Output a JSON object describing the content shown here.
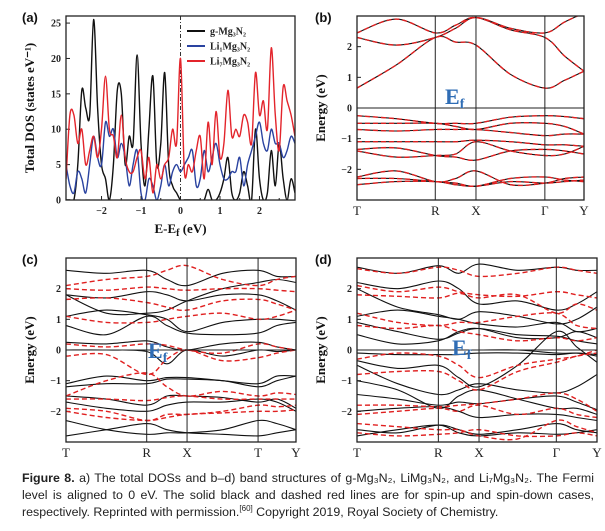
{
  "figure": {
    "colors": {
      "spin_up": "#111111",
      "spin_down": "#e02020",
      "mg3n2": "#111111",
      "li1": "#2a43a0",
      "li7": "#e3242b",
      "ef_label": "#2f6db5"
    },
    "ef_label": {
      "main": "E",
      "sub": "f"
    }
  },
  "chart_data": [
    {
      "panel": "(a)",
      "type": "line",
      "xlabel": {
        "main": "E-E",
        "sub": "f",
        "rest": " (eV)"
      },
      "ylabel": "Total DOS (states eV⁻¹)",
      "xlim": [
        -2.9,
        2.9
      ],
      "ylim": [
        0,
        26
      ],
      "xticks": [
        -2,
        -1,
        0,
        1,
        2
      ],
      "yticks": [
        0,
        5,
        10,
        15,
        20,
        25
      ],
      "fermi_line": 0,
      "legend_position": "top-right",
      "x": [
        -2.9,
        -2.8,
        -2.7,
        -2.6,
        -2.5,
        -2.4,
        -2.3,
        -2.2,
        -2.1,
        -2.0,
        -1.9,
        -1.8,
        -1.7,
        -1.6,
        -1.5,
        -1.4,
        -1.3,
        -1.2,
        -1.1,
        -1.0,
        -0.9,
        -0.8,
        -0.7,
        -0.6,
        -0.5,
        -0.4,
        -0.3,
        -0.2,
        -0.1,
        0,
        0.1,
        0.2,
        0.3,
        0.4,
        0.5,
        0.6,
        0.7,
        0.8,
        0.9,
        1.0,
        1.1,
        1.2,
        1.3,
        1.4,
        1.5,
        1.6,
        1.7,
        1.8,
        1.9,
        2.0,
        2.1,
        2.2,
        2.3,
        2.4,
        2.5,
        2.6,
        2.7,
        2.8,
        2.9
      ],
      "series": [
        {
          "name": "g-Mg₃N₂",
          "color_key": "mg3n2",
          "values": [
            0,
            0,
            0,
            5,
            15.5,
            13,
            12,
            25.5,
            13,
            5,
            3,
            0,
            5,
            15.5,
            15,
            5,
            9,
            8,
            20.5,
            8,
            2,
            10,
            17.5,
            5,
            8,
            18,
            5,
            2,
            1,
            0,
            0,
            0,
            0,
            0,
            0,
            0,
            1.5,
            0,
            0,
            1,
            3,
            6,
            1,
            0,
            1,
            4,
            2,
            0,
            10,
            3,
            0,
            1,
            7,
            2,
            8,
            3,
            0,
            3,
            1
          ]
        },
        {
          "name": "Li₁Mg₃N₂",
          "color_key": "li1",
          "values": [
            5,
            2,
            1,
            4,
            3,
            1,
            5,
            9,
            6,
            5,
            11,
            9,
            10,
            6,
            8,
            6,
            2,
            5,
            7,
            1,
            0,
            3,
            2,
            0,
            2,
            5,
            2,
            4,
            5,
            4,
            5,
            6,
            7,
            2,
            3,
            7,
            4,
            6,
            8,
            5,
            3,
            3,
            4,
            4,
            6,
            2,
            5,
            7,
            9,
            11,
            8,
            7,
            10,
            8,
            8,
            6,
            7,
            9,
            8
          ]
        },
        {
          "name": "Li₇Mg₃N₂",
          "color_key": "li7",
          "values": [
            3,
            12,
            12,
            8,
            10,
            5,
            7,
            9,
            6,
            10,
            17.5,
            10,
            9,
            6,
            12,
            6,
            4,
            4,
            6,
            7,
            3,
            6,
            1,
            5,
            3,
            5,
            6,
            10,
            8,
            20,
            4,
            5,
            4,
            7,
            9,
            3,
            11,
            5,
            12.5,
            6,
            8,
            15.5,
            9,
            10,
            9,
            12,
            11,
            8,
            18,
            12,
            14,
            10,
            21.5,
            12,
            7,
            16,
            14,
            12,
            9
          ]
        }
      ]
    },
    {
      "panel": "(b)",
      "type": "line",
      "ylabel": "Energy (eV)",
      "ylim": [
        -3,
        3
      ],
      "yticks": [
        -2,
        -1,
        0,
        1,
        2
      ],
      "k_path": [
        {
          "label": "T",
          "k": 0
        },
        {
          "label": "R",
          "k": 1
        },
        {
          "label": "X",
          "k": 1.52
        },
        {
          "label": "Γ",
          "k": 2.4
        },
        {
          "label": "Y",
          "k": 2.9
        }
      ],
      "spin_up": [
        [
          0.65,
          1.4,
          2.3,
          2.15,
          2.05,
          1.1,
          0.65,
          0.9,
          1.2
        ],
        [
          2.3,
          2.05,
          2.3,
          2.6,
          2.95,
          2.6,
          2.45,
          2.8,
          3.1
        ],
        [
          2.45,
          2.9,
          2.45,
          2.7,
          2.95,
          2.55,
          2.3,
          1.7,
          1.2
        ],
        [
          -0.25,
          -0.35,
          -0.5,
          -0.5,
          -0.5,
          -0.3,
          -0.25,
          -0.28,
          -0.35
        ],
        [
          -0.5,
          -0.5,
          -0.5,
          -0.6,
          -0.7,
          -0.5,
          -0.5,
          -0.6,
          -0.85
        ],
        [
          -0.7,
          -0.75,
          -0.7,
          -0.7,
          -0.7,
          -0.8,
          -0.9,
          -0.85,
          -0.85
        ],
        [
          -1.1,
          -1.1,
          -1.1,
          -1.1,
          -1.05,
          -1.1,
          -1.2,
          -1.2,
          -1.25
        ],
        [
          -1.35,
          -1.3,
          -1.55,
          -1.6,
          -1.7,
          -1.4,
          -1.35,
          -1.4,
          -1.5
        ],
        [
          -1.4,
          -1.6,
          -1.55,
          -1.5,
          -1.1,
          -1.4,
          -1.55,
          -1.5,
          -1.25
        ],
        [
          -2.25,
          -2.05,
          -2.4,
          -2.3,
          -2.05,
          -2.5,
          -2.45,
          -2.3,
          -2.25
        ],
        [
          -2.3,
          -2.3,
          -2.4,
          -2.45,
          -2.55,
          -2.3,
          -2.25,
          -2.35,
          -2.4
        ],
        [
          -2.5,
          -2.4,
          -2.4,
          -2.5,
          -2.55,
          -2.4,
          -2.45,
          -2.4,
          -2.35
        ]
      ],
      "spin_down_same_as_up": true
    },
    {
      "panel": "(c)",
      "type": "line",
      "ylabel": "Energy (eV)",
      "ylim": [
        -3,
        3
      ],
      "yticks": [
        -2,
        -1,
        0,
        1,
        2
      ],
      "k_path": [
        {
          "label": "T",
          "k": 0
        },
        {
          "label": "R",
          "k": 1
        },
        {
          "label": "X",
          "k": 1.5
        },
        {
          "label": "T",
          "k": 2.38
        },
        {
          "label": "Y",
          "k": 2.85
        }
      ],
      "spin_up": [
        [
          2.6,
          2.5,
          2.6,
          2.3,
          2.1,
          2.5,
          2.6,
          2.4,
          2.4
        ],
        [
          1.8,
          1.7,
          1.9,
          1.8,
          1.6,
          1.8,
          1.8,
          1.6,
          1.3
        ],
        [
          1.8,
          1.2,
          1.2,
          1.3,
          1.6,
          2.0,
          2.2,
          2.3,
          2.2
        ],
        [
          1.1,
          1.3,
          1.15,
          1.0,
          0.6,
          0.9,
          1.0,
          1.0,
          0.95
        ],
        [
          0.8,
          0.5,
          1.1,
          0.8,
          0.55,
          0.5,
          0.55,
          0.8,
          0.9
        ],
        [
          0.25,
          0.2,
          0.3,
          0.1,
          0,
          0.2,
          0.25,
          0.1,
          0
        ],
        [
          0,
          0,
          -0.05,
          -0.45,
          0,
          -0.2,
          0,
          -0.05,
          0
        ],
        [
          -1.1,
          -0.85,
          -1.0,
          -0.9,
          -0.9,
          -1.0,
          -1.1,
          -0.85,
          -0.85
        ],
        [
          -1.2,
          -1.1,
          -1.1,
          -0.95,
          -0.95,
          -1.0,
          -1.2,
          -1.0,
          -0.85
        ],
        [
          -1.5,
          -1.6,
          -1.8,
          -1.5,
          -1.5,
          -1.55,
          -1.7,
          -1.6,
          -1.9
        ],
        [
          -1.7,
          -1.9,
          -2.0,
          -1.8,
          -1.7,
          -1.7,
          -1.6,
          -1.7,
          -2.0
        ],
        [
          -2.3,
          -2.6,
          -2.75,
          -2.7,
          -2.7,
          -2.6,
          -2.3,
          -2.4,
          -2.6
        ],
        [
          -2.8,
          -2.6,
          -2.4,
          -2.6,
          -2.7,
          -2.75,
          -2.8,
          -2.7,
          -2.6
        ]
      ],
      "spin_down": [
        [
          2.1,
          2.3,
          2.4,
          2.6,
          2.75,
          2.3,
          2.1,
          2.3,
          2.4
        ],
        [
          2.0,
          1.95,
          2.05,
          2.0,
          1.95,
          2.0,
          2.0,
          1.95,
          1.9
        ],
        [
          1.65,
          1.7,
          1.55,
          1.4,
          1.3,
          1.6,
          1.65,
          1.5,
          1.3
        ],
        [
          1.1,
          0.9,
          0.9,
          1.0,
          1.1,
          1.2,
          1.0,
          1.1,
          1.3
        ],
        [
          0.2,
          0.1,
          0.2,
          0.15,
          0,
          -0.1,
          0.2,
          0.1,
          0
        ],
        [
          -0.2,
          -0.15,
          -0.8,
          -0.3,
          0,
          -0.35,
          -0.25,
          -0.1,
          0
        ],
        [
          -1.5,
          -1.0,
          -0.75,
          -1.2,
          -1.5,
          -1.35,
          -1.5,
          -1.4,
          -1.45
        ],
        [
          -1.6,
          -1.6,
          -1.65,
          -1.55,
          -1.5,
          -1.6,
          -1.6,
          -1.6,
          -1.6
        ],
        [
          -1.9,
          -2.0,
          -2.3,
          -2.1,
          -2.1,
          -2.0,
          -1.8,
          -1.85,
          -1.8
        ],
        [
          -2.0,
          -2.2,
          -2.3,
          -2.2,
          -2.1,
          -2.05,
          -2.0,
          -2.0,
          -1.95
        ]
      ]
    },
    {
      "panel": "(d)",
      "type": "line",
      "ylabel": "Energy (eV)",
      "ylim": [
        -3,
        3
      ],
      "yticks": [
        -2,
        -1,
        0,
        1,
        2
      ],
      "k_path": [
        {
          "label": "T",
          "k": 0
        },
        {
          "label": "R",
          "k": 1
        },
        {
          "label": "X",
          "k": 1.5
        },
        {
          "label": "Γ",
          "k": 2.45
        },
        {
          "label": "Y",
          "k": 2.95
        }
      ],
      "spin_up": [
        [
          2.7,
          2.5,
          2.75,
          2.5,
          2.8,
          2.6,
          2.7,
          2.6,
          2.6
        ],
        [
          2.2,
          2.0,
          2.25,
          2.0,
          1.5,
          1.6,
          1.3,
          1.5,
          1.9
        ],
        [
          2.0,
          1.4,
          1.15,
          1.0,
          1.25,
          1.1,
          0.85,
          1.0,
          1.4
        ],
        [
          1.1,
          1.3,
          1.1,
          1.0,
          0.85,
          0.75,
          0.9,
          0.6,
          0.7
        ],
        [
          0.9,
          0.6,
          0.35,
          0.55,
          0.7,
          0.5,
          0.45,
          0.3,
          0.2
        ],
        [
          0.5,
          0.2,
          0.3,
          0.6,
          0.7,
          0.4,
          0.4,
          0.6,
          0.4
        ],
        [
          0,
          0,
          0,
          0,
          0,
          0,
          -0.1,
          -0.1,
          -0.15
        ],
        [
          -0.1,
          -0.15,
          -0.15,
          -0.15,
          -0.1,
          -0.1,
          -0.15,
          -0.1,
          -0.2
        ],
        [
          -0.35,
          -0.6,
          -0.5,
          -0.9,
          -1.2,
          -0.5,
          0.6,
          0.1,
          -0.4
        ],
        [
          -0.5,
          -1.1,
          -1.45,
          -1.3,
          -1.1,
          -1.3,
          -1.4,
          -1.2,
          -0.8
        ],
        [
          -1.0,
          -1.3,
          -1.9,
          -1.5,
          -1.3,
          -1.6,
          -1.9,
          -1.9,
          -2.1
        ],
        [
          -1.45,
          -1.6,
          -1.8,
          -1.7,
          -1.75,
          -1.6,
          -1.5,
          -1.7,
          -1.95
        ],
        [
          -2.0,
          -1.9,
          -1.85,
          -2.0,
          -2.2,
          -2.1,
          -2.1,
          -2.2,
          -2.3
        ],
        [
          -2.6,
          -2.7,
          -2.45,
          -2.6,
          -2.75,
          -2.6,
          -2.4,
          -2.6,
          -2.7
        ],
        [
          -2.8,
          -2.6,
          -2.45,
          -2.7,
          -2.8,
          -2.7,
          -2.75,
          -2.7,
          -2.6
        ]
      ],
      "spin_down": [
        [
          2.65,
          2.5,
          2.7,
          2.6,
          2.4,
          2.5,
          2.7,
          2.6,
          2.5
        ],
        [
          2.1,
          1.9,
          2.05,
          1.9,
          1.8,
          1.75,
          1.9,
          1.8,
          1.7
        ],
        [
          1.8,
          1.75,
          1.7,
          1.85,
          1.7,
          1.8,
          1.2,
          1.5,
          1.3
        ],
        [
          1.2,
          0.9,
          0.8,
          0.9,
          0.9,
          1.1,
          1.2,
          0.8,
          0.7
        ],
        [
          0.8,
          0.7,
          0.8,
          0.6,
          0.5,
          0.3,
          0.4,
          0.3,
          0.4
        ],
        [
          -0.3,
          -0.1,
          -0.2,
          -0.5,
          -0.9,
          -0.5,
          -0.3,
          -0.2,
          0
        ],
        [
          -0.8,
          -0.7,
          -0.7,
          -1.0,
          -1.3,
          -0.7,
          -0.4,
          -0.2,
          -0.1
        ],
        [
          -1.8,
          -1.8,
          -1.85,
          -1.8,
          -1.75,
          -1.6,
          -1.4,
          -1.6,
          -2.0
        ],
        [
          -2.1,
          -2.0,
          -1.9,
          -2.0,
          -1.8,
          -2.1,
          -1.9,
          -2.1,
          -2.2
        ],
        [
          -2.4,
          -2.5,
          -2.6,
          -2.6,
          -2.8,
          -2.9,
          -2.3,
          -2.5,
          -2.7
        ],
        [
          -2.7,
          -2.8,
          -2.75,
          -2.7,
          -2.6,
          -2.8,
          -2.8,
          -2.7,
          -2.8
        ]
      ]
    }
  ],
  "caption": {
    "label": "Figure 8.",
    "line1": " a) The total DOSs and b–d) band structures of g-Mg₃N₂, LiMg₃N₂, and Li₇Mg₃N₂. The Fermi",
    "line2": "level is aligned to 0 eV. The solid black and dashed red lines are for spin-up and spin-down cases,",
    "line3a": "respectively. Reprinted with permission.",
    "ref": "[60]",
    "line3b": " Copyright 2019, Royal Society of Chemistry."
  }
}
